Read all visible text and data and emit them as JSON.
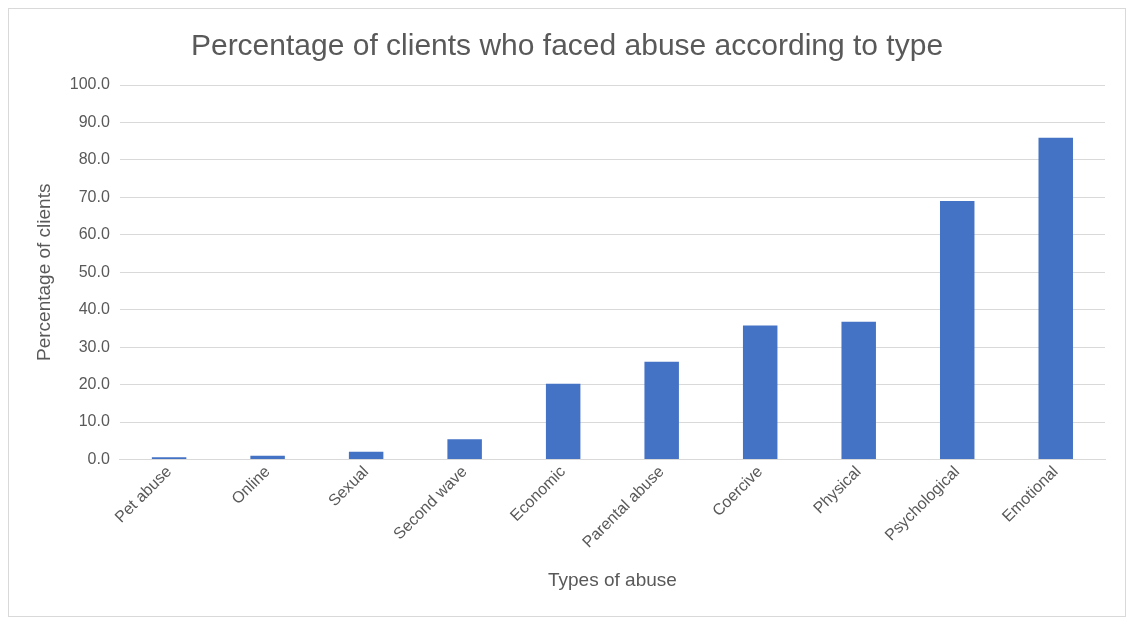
{
  "chart_data": {
    "type": "bar",
    "title": "Percentage of clients who faced abuse according to type",
    "xlabel": "Types of abuse",
    "ylabel": "Percentage of clients",
    "categories": [
      "Pet abuse",
      "Online",
      "Sexual",
      "Second wave",
      "Economic",
      "Parental abuse",
      "Coercive",
      "Physical",
      "Psychological",
      "Emotional"
    ],
    "values": [
      0.6,
      1.0,
      2.1,
      5.4,
      20.2,
      26.1,
      35.8,
      36.8,
      69.0,
      85.9
    ],
    "color": "#4472c4",
    "ylim": [
      0,
      100
    ],
    "yticks": [
      {
        "value": 0,
        "label": "0.0"
      },
      {
        "value": 10,
        "label": "10.0"
      },
      {
        "value": 20,
        "label": "20.0"
      },
      {
        "value": 30,
        "label": "30.0"
      },
      {
        "value": 40,
        "label": "40.0"
      },
      {
        "value": 50,
        "label": "50.0"
      },
      {
        "value": 60,
        "label": "60.0"
      },
      {
        "value": 70,
        "label": "70.0"
      },
      {
        "value": 80,
        "label": "80.0"
      },
      {
        "value": 90,
        "label": "90.0"
      },
      {
        "value": 100,
        "label": "100.0"
      }
    ],
    "grid": "y",
    "legend": false
  }
}
